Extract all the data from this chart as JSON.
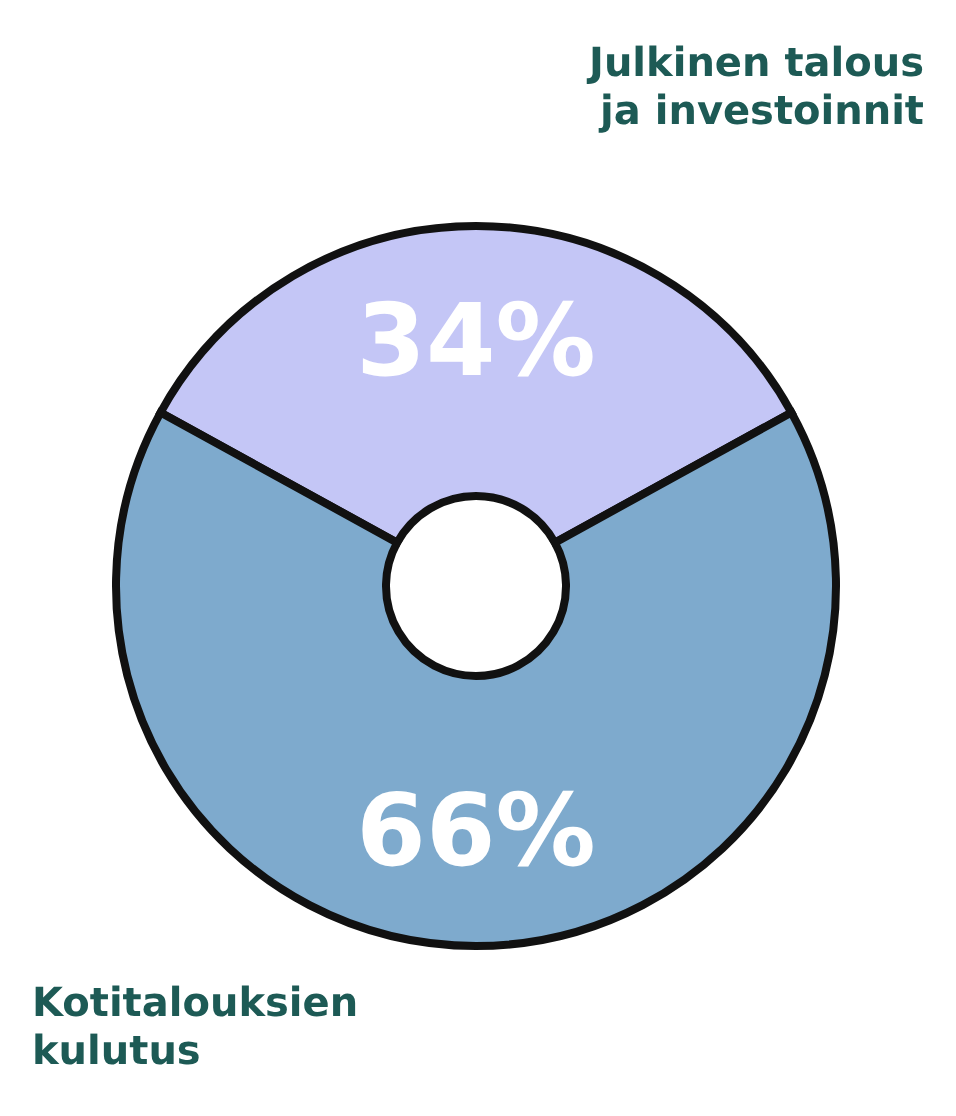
{
  "chart_data": {
    "type": "donut",
    "categories": [
      "Julkinen talous ja investoinnit",
      "Kotitalouksien kulutus"
    ],
    "values": [
      34,
      66
    ],
    "colors": [
      "#c4c6f6",
      "#7eaacd"
    ],
    "value_labels": [
      "34%",
      "66%"
    ]
  }
}
